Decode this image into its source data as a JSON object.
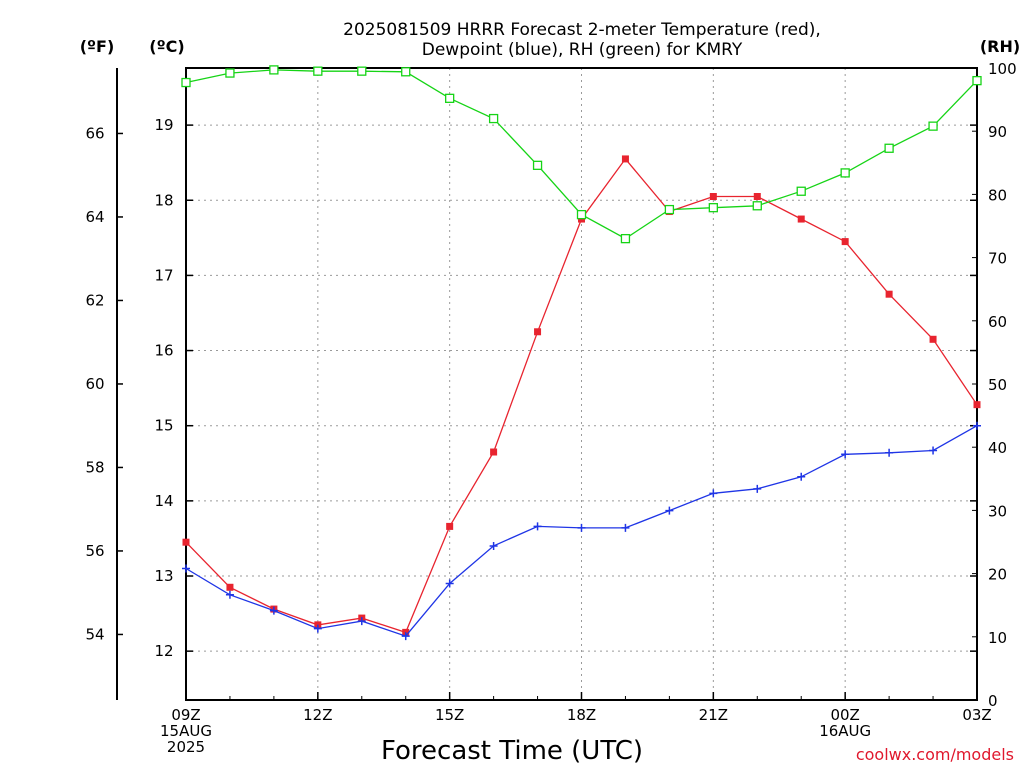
{
  "title_line1": "2025081509 HRRR Forecast 2-meter Temperature (red),",
  "title_line2": "Dewpoint (blue), RH (green) for KMRY",
  "unit_f": "(ºF)",
  "unit_c": "(ºC)",
  "unit_rh": "(RH)",
  "credit": "coolwx.com/models",
  "colors": {
    "temperature": "#e8242f",
    "dewpoint": "#1f35e6",
    "rh": "#16d416",
    "grid": "#9a9a9a"
  },
  "chart_data": {
    "type": "line",
    "title": "2025081509 HRRR Forecast 2-meter Temperature (red), Dewpoint (blue), RH (green) for KMRY",
    "xlabel": "Forecast Time (UTC)",
    "x": [
      "09Z 15AUG 2025",
      "10Z",
      "11Z",
      "12Z",
      "13Z",
      "14Z",
      "15Z",
      "16Z",
      "17Z",
      "18Z",
      "19Z",
      "20Z",
      "21Z",
      "22Z",
      "23Z",
      "00Z 16AUG",
      "01Z",
      "02Z",
      "03Z"
    ],
    "x_ticks": [
      {
        "index": 0,
        "lines": [
          "09Z",
          "15AUG",
          "2025"
        ]
      },
      {
        "index": 3,
        "lines": [
          "12Z"
        ]
      },
      {
        "index": 6,
        "lines": [
          "15Z"
        ]
      },
      {
        "index": 9,
        "lines": [
          "18Z"
        ]
      },
      {
        "index": 12,
        "lines": [
          "21Z"
        ]
      },
      {
        "index": 15,
        "lines": [
          "00Z",
          "16AUG"
        ]
      },
      {
        "index": 18,
        "lines": [
          "03Z"
        ]
      }
    ],
    "y_left_celsius": {
      "label": "(ºC)",
      "ticks": [
        12,
        13,
        14,
        15,
        16,
        17,
        18,
        19
      ],
      "range": [
        11.35,
        19.76
      ]
    },
    "y_left_fahrenheit": {
      "label": "(ºF)",
      "ticks": [
        54,
        56,
        58,
        60,
        62,
        64,
        66
      ]
    },
    "y_right_rh": {
      "label": "(RH)",
      "ticks": [
        0,
        10,
        20,
        30,
        40,
        50,
        60,
        70,
        80,
        90,
        100
      ],
      "range": [
        0,
        100
      ]
    },
    "grid": true,
    "series": [
      {
        "name": "Temperature",
        "axis": "celsius",
        "marker": "filled-square",
        "values": [
          13.45,
          12.85,
          12.56,
          12.35,
          12.44,
          12.25,
          13.66,
          14.65,
          16.25,
          17.75,
          18.55,
          17.85,
          18.05,
          18.05,
          17.75,
          17.45,
          16.75,
          16.15,
          15.28
        ]
      },
      {
        "name": "Dewpoint",
        "axis": "celsius",
        "marker": "plus",
        "values": [
          13.1,
          12.75,
          12.54,
          12.3,
          12.4,
          12.2,
          12.9,
          13.4,
          13.66,
          13.64,
          13.64,
          13.87,
          14.1,
          14.16,
          14.32,
          14.62,
          14.64,
          14.67,
          15.0
        ]
      },
      {
        "name": "RH",
        "axis": "rh",
        "marker": "open-square",
        "values": [
          97.7,
          99.2,
          99.7,
          99.5,
          99.5,
          99.4,
          95.2,
          92.0,
          84.6,
          76.8,
          73.0,
          77.6,
          77.9,
          78.2,
          80.5,
          83.4,
          87.3,
          90.8,
          98.0
        ]
      }
    ]
  }
}
